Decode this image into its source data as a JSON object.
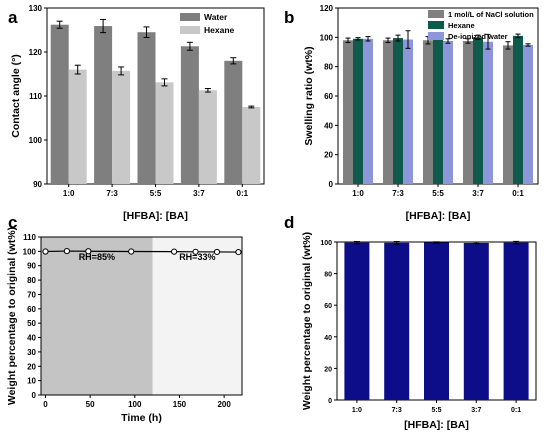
{
  "chart_data": [
    {
      "panel": "a",
      "type": "bar",
      "categories": [
        "1:0",
        "7:3",
        "5:5",
        "3:7",
        "0:1"
      ],
      "series": [
        {
          "name": "Water",
          "color": "#7f7f7f",
          "values": [
            126.2,
            125.9,
            124.5,
            121.3,
            118.0
          ],
          "errors": [
            0.8,
            1.5,
            1.2,
            0.9,
            0.7
          ]
        },
        {
          "name": "Hexane",
          "color": "#c8c8c8",
          "values": [
            116.0,
            115.7,
            113.1,
            111.3,
            107.5
          ],
          "errors": [
            1.0,
            0.9,
            0.8,
            0.4,
            0.2
          ]
        }
      ],
      "xlabel": "[HFBA]: [BA]",
      "ylabel": "Contact angle (°)",
      "ylim": [
        90,
        130
      ],
      "yticks": [
        90,
        100,
        110,
        120,
        130
      ],
      "legend": "top-right",
      "grid": false
    },
    {
      "panel": "b",
      "type": "bar",
      "categories": [
        "1:0",
        "7:3",
        "5:5",
        "3:7",
        "0:1"
      ],
      "series": [
        {
          "name": "1 mol/L of NaCl solution",
          "color": "#808080",
          "values": [
            98.0,
            98.0,
            98.0,
            97.5,
            94.5
          ],
          "errors": [
            1.5,
            1.5,
            2.5,
            1.5,
            2.5
          ]
        },
        {
          "name": "Hexane",
          "color": "#0f5a4a",
          "values": [
            99.0,
            99.5,
            100.5,
            100.0,
            101.0
          ],
          "errors": [
            0.8,
            2.0,
            1.5,
            1.5,
            1.2
          ]
        },
        {
          "name": "De-ionized water",
          "color": "#8d95db",
          "values": [
            99.0,
            98.5,
            97.5,
            97.0,
            94.8
          ],
          "errors": [
            1.5,
            6.0,
            1.5,
            5.0,
            0.8
          ]
        }
      ],
      "xlabel": "[HFBA]: [BA]",
      "ylabel": "Swelling ratio (wt%)",
      "ylim": [
        0,
        120
      ],
      "yticks": [
        0,
        20,
        40,
        60,
        80,
        100,
        120
      ],
      "legend": "top-left",
      "grid": false
    },
    {
      "panel": "c",
      "type": "line",
      "x": [
        0,
        24,
        48,
        96,
        144,
        168,
        192,
        216
      ],
      "series": [
        {
          "name": "",
          "color": "#000000",
          "values": [
            99.9,
            100.2,
            100.1,
            99.9,
            99.8,
            99.7,
            99.6,
            99.5
          ]
        }
      ],
      "regions": [
        {
          "label": "RH=85%",
          "x_from": 0,
          "x_to": 120,
          "color": "#c4c4c4"
        },
        {
          "label": "RH=33%",
          "x_from": 120,
          "x_to": 220,
          "color": "#f3f3f3"
        }
      ],
      "xlabel": "Time (h)",
      "ylabel": "Weight percentage to original (wt%)",
      "xlim": [
        -5,
        220
      ],
      "ylim": [
        0,
        110
      ],
      "xticks": [
        0,
        50,
        100,
        150,
        200
      ],
      "yticks": [
        0,
        10,
        20,
        30,
        40,
        50,
        60,
        70,
        80,
        90,
        100,
        110
      ],
      "grid": false
    },
    {
      "panel": "d",
      "type": "bar",
      "categories": [
        "1:0",
        "7:3",
        "5:5",
        "3:7",
        "0:1"
      ],
      "series": [
        {
          "name": "",
          "color": "#0d0d8a",
          "values": [
            99.6,
            99.5,
            99.7,
            99.4,
            99.6
          ],
          "errors": [
            0.7,
            0.8,
            0.4,
            0.5,
            0.8
          ]
        }
      ],
      "xlabel": "[HFBA]: [BA]",
      "ylabel": "Weight percentage to original (wt%)",
      "ylim": [
        0,
        100
      ],
      "yticks": [
        0,
        20,
        40,
        60,
        80,
        100
      ],
      "grid": false
    }
  ]
}
